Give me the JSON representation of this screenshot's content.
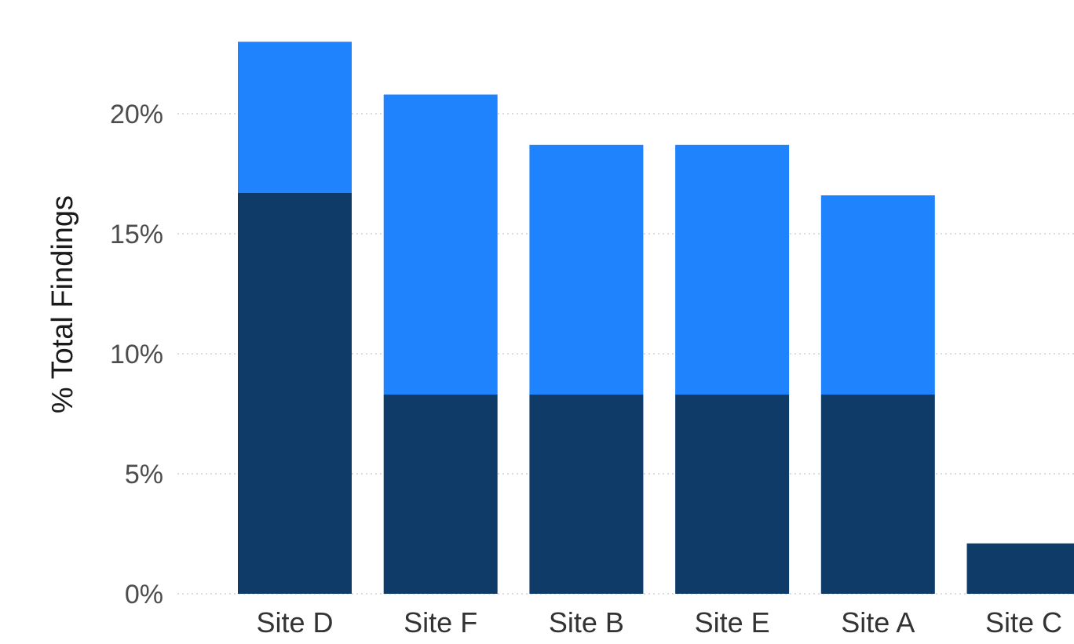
{
  "chart_data": {
    "type": "bar",
    "stacked": true,
    "title": "",
    "xlabel": "",
    "ylabel": "% Total Findings",
    "categories": [
      "Site D",
      "Site F",
      "Site B",
      "Site E",
      "Site A",
      "Site C"
    ],
    "series": [
      {
        "color": "#0f3b69",
        "values": [
          16.7,
          8.3,
          8.3,
          8.3,
          8.3,
          2.1
        ]
      },
      {
        "color": "#1f83fe",
        "values": [
          6.3,
          12.5,
          10.4,
          10.4,
          8.3,
          0
        ]
      }
    ],
    "ylim": [
      0,
      23
    ],
    "yticks": [
      0,
      5,
      10,
      15,
      20
    ],
    "ytick_labels": [
      "0%",
      "5%",
      "10%",
      "15%",
      "20%"
    ],
    "grid": true,
    "legend": "none"
  }
}
